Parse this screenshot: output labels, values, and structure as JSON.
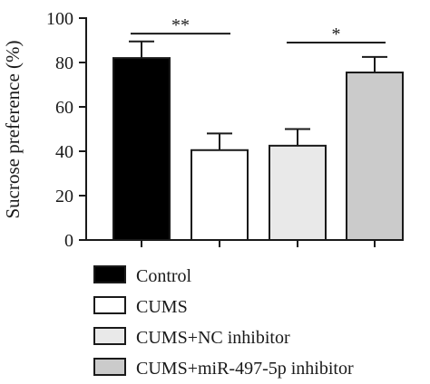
{
  "chart_data": {
    "type": "bar",
    "title": "",
    "xlabel": "",
    "ylabel": "Sucrose preference (%)",
    "ylim": [
      0,
      100
    ],
    "yticks": [
      0,
      20,
      40,
      60,
      80,
      100
    ],
    "grid": false,
    "legend_position": "bottom",
    "categories": [
      "Control",
      "CUMS",
      "CUMS+NC inhibitor",
      "CUMS+miR-497-5p inhibitor"
    ],
    "values": [
      82,
      40.5,
      42.5,
      75.5
    ],
    "errors": [
      7.5,
      7.5,
      7.5,
      7
    ],
    "colors": [
      "#000000",
      "#ffffff",
      "#e9e9e9",
      "#cbcbcb"
    ],
    "significance": [
      {
        "from": 0,
        "to": 1,
        "label": "**",
        "y": 93
      },
      {
        "from": 2,
        "to": 3,
        "label": "*",
        "y": 89
      }
    ]
  }
}
